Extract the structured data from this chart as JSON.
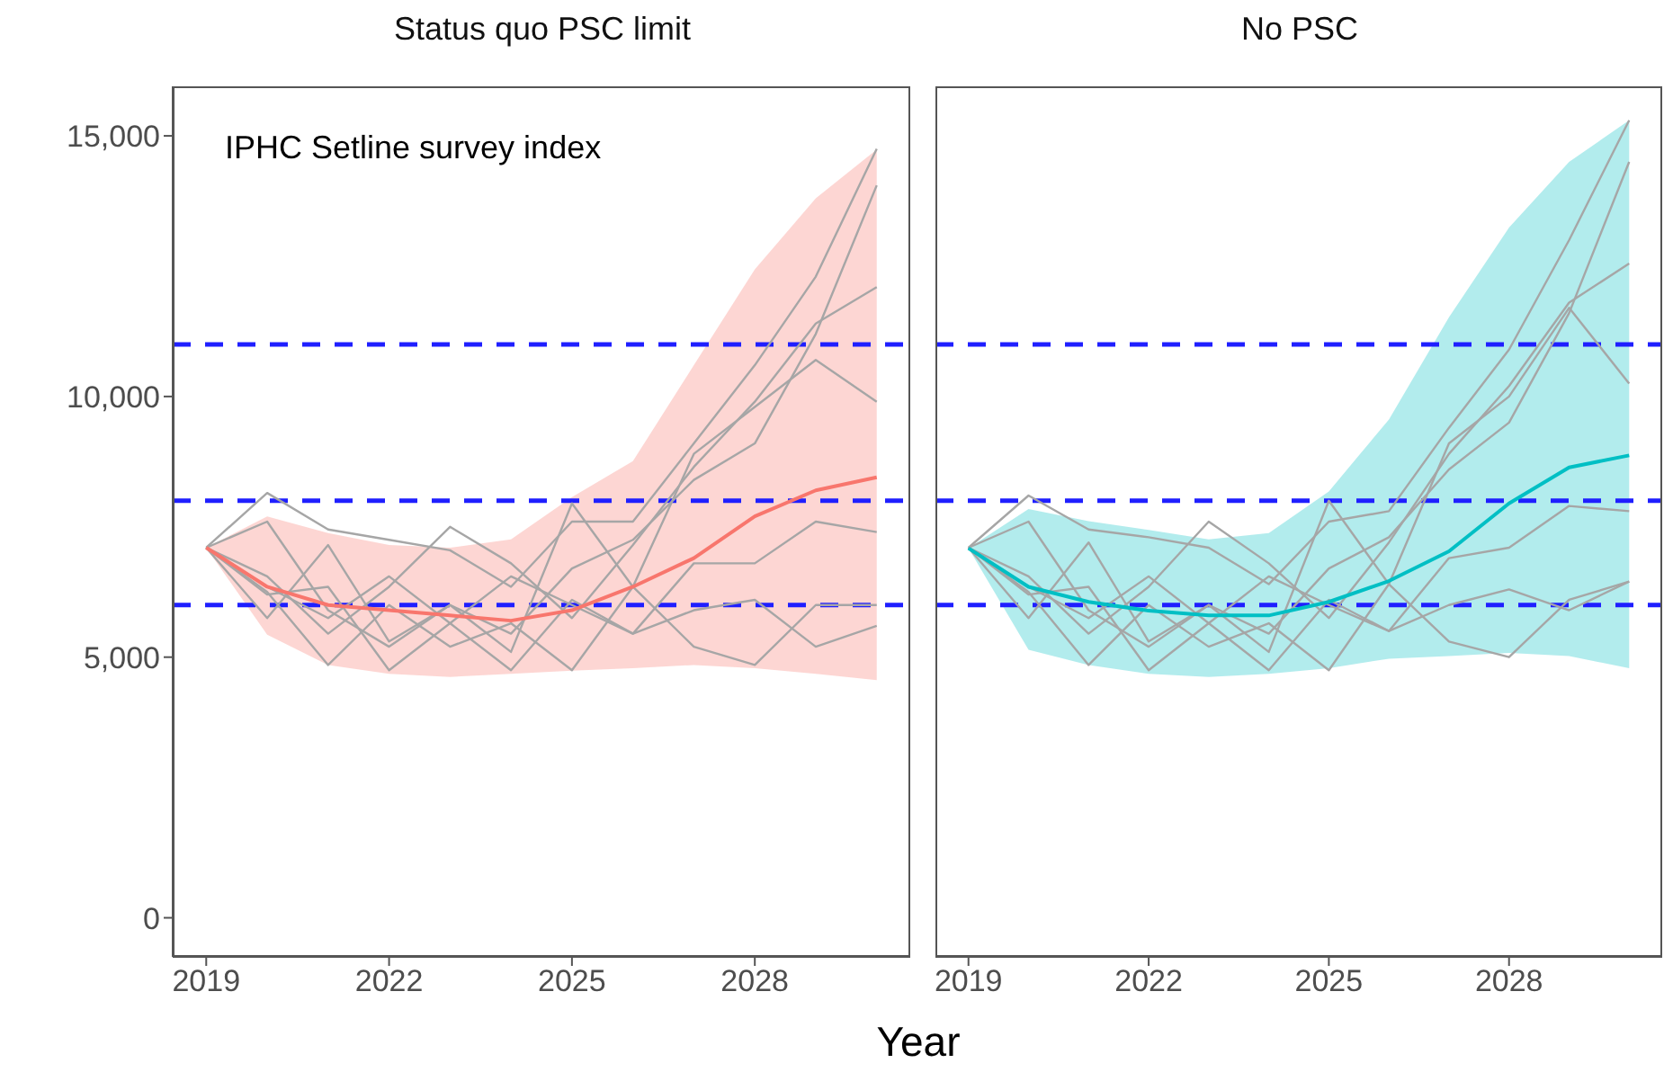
{
  "chart_data": [
    {
      "type": "line",
      "title": "Status quo PSC limit",
      "xlabel": "Year",
      "annotations": [
        "IPHC Setline survey index"
      ],
      "x": [
        2019,
        2020,
        2021,
        2022,
        2023,
        2024,
        2025,
        2026,
        2027,
        2028,
        2029,
        2030
      ],
      "xlim": [
        2018.45,
        2030.55
      ],
      "xticks": [
        2019,
        2022,
        2025,
        2028
      ],
      "ylim": [
        -750,
        15950
      ],
      "yticks": [
        0,
        {
          "value": 5000,
          "label": "5,000"
        },
        {
          "value": 10000,
          "label": "10,000"
        },
        {
          "value": 15000,
          "label": "15,000"
        }
      ],
      "grid": false,
      "legend": false,
      "marker": "none",
      "ref_lines": [
        {
          "axis": "y",
          "value": 6000,
          "color": "#1f1fff",
          "line_style": "dashed"
        },
        {
          "axis": "y",
          "value": 8000,
          "color": "#1f1fff",
          "line_style": "dashed"
        },
        {
          "axis": "y",
          "value": 11000,
          "color": "#1f1fff",
          "line_style": "dashed"
        }
      ],
      "series": [
        {
          "color": "#f8766d",
          "values": [
            7100,
            6350,
            6000,
            5900,
            5800,
            5700,
            5900,
            6350,
            6900,
            7700,
            8200,
            8450
          ],
          "lower": [
            7100,
            5430,
            4850,
            4680,
            4620,
            4680,
            4740,
            4790,
            4850,
            4790,
            4680,
            4560
          ],
          "upper": [
            7100,
            7700,
            7380,
            7150,
            7100,
            7260,
            8070,
            8760,
            10600,
            12440,
            13800,
            14740
          ]
        },
        {
          "color": "#a6a6a6",
          "values": [
            7100,
            8150,
            7450,
            7250,
            7050,
            6350,
            7600,
            7600,
            9100,
            10600,
            12300,
            14750
          ]
        },
        {
          "color": "#a6a6a6",
          "values": [
            7100,
            7600,
            5900,
            5200,
            6000,
            5450,
            6700,
            7250,
            8400,
            9100,
            11200,
            14050
          ]
        },
        {
          "color": "#a6a6a6",
          "values": [
            7100,
            6550,
            5450,
            6350,
            7500,
            6800,
            5750,
            7150,
            8650,
            9900,
            11400,
            12100
          ]
        },
        {
          "color": "#a6a6a6",
          "values": [
            7100,
            5750,
            7150,
            5300,
            6000,
            5100,
            7950,
            6350,
            8900,
            9800,
            10700,
            9900
          ]
        },
        {
          "color": "#a6a6a6",
          "values": [
            7100,
            6350,
            5750,
            6550,
            5650,
            6550,
            6000,
            5450,
            6800,
            6800,
            7600,
            7400
          ]
        },
        {
          "color": "#a6a6a6",
          "values": [
            7100,
            6250,
            4850,
            6000,
            5200,
            5650,
            4750,
            6350,
            5200,
            4850,
            6000,
            6000
          ]
        },
        {
          "color": "#a6a6a6",
          "values": [
            7100,
            6200,
            6350,
            4750,
            5650,
            4750,
            6100,
            5450,
            5900,
            6100,
            5200,
            5600
          ]
        }
      ]
    },
    {
      "type": "line",
      "title": "No PSC",
      "x": [
        2019,
        2020,
        2021,
        2022,
        2023,
        2024,
        2025,
        2026,
        2027,
        2028,
        2029,
        2030
      ],
      "xlim": [
        2018.45,
        2030.55
      ],
      "xticks": [
        2019,
        2022,
        2025,
        2028
      ],
      "ylim": [
        -750,
        15950
      ],
      "tick_labels": "x",
      "grid": false,
      "legend": false,
      "marker": "none",
      "ref_lines": [
        {
          "axis": "y",
          "value": 6000,
          "color": "#1f1fff",
          "line_style": "dashed"
        },
        {
          "axis": "y",
          "value": 8000,
          "color": "#1f1fff",
          "line_style": "dashed"
        },
        {
          "axis": "y",
          "value": 11000,
          "color": "#1f1fff",
          "line_style": "dashed"
        }
      ],
      "series": [
        {
          "color": "#00bfc4",
          "values": [
            7090,
            6350,
            6060,
            5890,
            5800,
            5800,
            6060,
            6460,
            7030,
            7950,
            8640,
            8870
          ],
          "lower": [
            7090,
            5140,
            4850,
            4680,
            4620,
            4680,
            4790,
            4970,
            5020,
            5080,
            5020,
            4790
          ],
          "upper": [
            7090,
            7840,
            7610,
            7440,
            7260,
            7380,
            8180,
            9560,
            11520,
            13240,
            14500,
            15300
          ]
        },
        {
          "color": "#a6a6a6",
          "values": [
            7100,
            8100,
            7450,
            7300,
            7100,
            6400,
            7600,
            7800,
            9400,
            10900,
            13000,
            15300
          ]
        },
        {
          "color": "#a6a6a6",
          "values": [
            7100,
            7600,
            5900,
            5200,
            6000,
            5450,
            6700,
            7300,
            8600,
            9500,
            11600,
            14500
          ]
        },
        {
          "color": "#a6a6a6",
          "values": [
            7100,
            6550,
            5450,
            6350,
            7600,
            6800,
            5750,
            7200,
            8900,
            10200,
            11800,
            12550
          ]
        },
        {
          "color": "#a6a6a6",
          "values": [
            7100,
            5750,
            7200,
            5300,
            6000,
            5100,
            8000,
            6400,
            9100,
            10000,
            11700,
            10250
          ]
        },
        {
          "color": "#a6a6a6",
          "values": [
            7100,
            6350,
            5750,
            6550,
            5650,
            6550,
            6000,
            5500,
            6900,
            7100,
            7900,
            7800
          ]
        },
        {
          "color": "#a6a6a6",
          "values": [
            7100,
            6250,
            4850,
            6000,
            5200,
            5650,
            4750,
            6400,
            5300,
            5000,
            6100,
            6450
          ]
        },
        {
          "color": "#a6a6a6",
          "values": [
            7100,
            6200,
            6350,
            4750,
            5650,
            4750,
            6100,
            5500,
            6000,
            6300,
            5900,
            6450
          ]
        }
      ]
    }
  ]
}
